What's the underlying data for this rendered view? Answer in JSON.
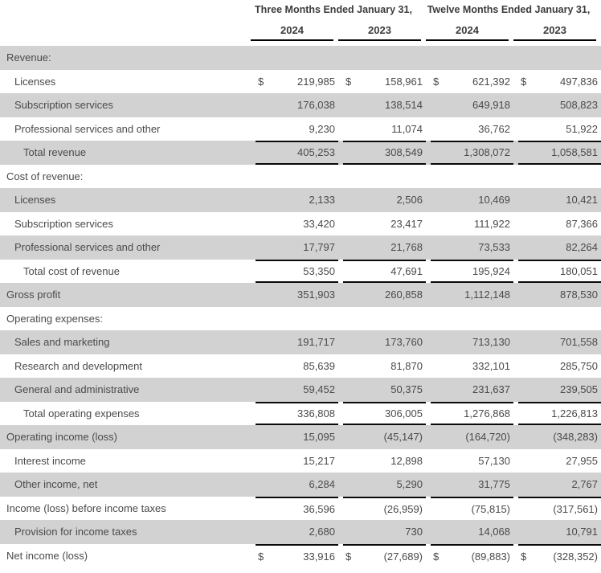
{
  "header": {
    "col_groups": [
      {
        "label": "Three Months Ended January 31,"
      },
      {
        "label": "Twelve Months Ended January 31,"
      }
    ],
    "years": [
      "2024",
      "2023",
      "2024",
      "2023"
    ]
  },
  "colors": {
    "row_shade": "#d2d2d2",
    "text": "#4a4a4a",
    "header_text": "#3c3c3c",
    "rule": "#0a0a0a"
  },
  "table": {
    "dollar_symbol": "$",
    "rows": [
      {
        "label": "Revenue:",
        "indent": 0,
        "shaded": true,
        "dollar": false,
        "border_top": false,
        "border_bottom": false,
        "values": [
          "",
          "",
          "",
          ""
        ]
      },
      {
        "label": "Licenses",
        "indent": 1,
        "shaded": false,
        "dollar": true,
        "border_top": false,
        "border_bottom": false,
        "values": [
          "219,985",
          "158,961",
          "621,392",
          "497,836"
        ]
      },
      {
        "label": "Subscription services",
        "indent": 1,
        "shaded": true,
        "dollar": false,
        "border_top": false,
        "border_bottom": false,
        "values": [
          "176,038",
          "138,514",
          "649,918",
          "508,823"
        ]
      },
      {
        "label": "Professional services and other",
        "indent": 1,
        "shaded": false,
        "dollar": false,
        "border_top": false,
        "border_bottom": false,
        "values": [
          "9,230",
          "11,074",
          "36,762",
          "51,922"
        ]
      },
      {
        "label": "Total revenue",
        "indent": 2,
        "shaded": true,
        "dollar": false,
        "border_top": true,
        "border_bottom": true,
        "values": [
          "405,253",
          "308,549",
          "1,308,072",
          "1,058,581"
        ]
      },
      {
        "label": "Cost of revenue:",
        "indent": 0,
        "shaded": false,
        "dollar": false,
        "border_top": false,
        "border_bottom": false,
        "values": [
          "",
          "",
          "",
          ""
        ]
      },
      {
        "label": "Licenses",
        "indent": 1,
        "shaded": true,
        "dollar": false,
        "border_top": false,
        "border_bottom": false,
        "values": [
          "2,133",
          "2,506",
          "10,469",
          "10,421"
        ]
      },
      {
        "label": "Subscription services",
        "indent": 1,
        "shaded": false,
        "dollar": false,
        "border_top": false,
        "border_bottom": false,
        "values": [
          "33,420",
          "23,417",
          "111,922",
          "87,366"
        ]
      },
      {
        "label": "Professional services and other",
        "indent": 1,
        "shaded": true,
        "dollar": false,
        "border_top": false,
        "border_bottom": false,
        "values": [
          "17,797",
          "21,768",
          "73,533",
          "82,264"
        ]
      },
      {
        "label": "Total cost of revenue",
        "indent": 2,
        "shaded": false,
        "dollar": false,
        "border_top": true,
        "border_bottom": true,
        "values": [
          "53,350",
          "47,691",
          "195,924",
          "180,051"
        ]
      },
      {
        "label": "Gross profit",
        "indent": 0,
        "shaded": true,
        "dollar": false,
        "border_top": false,
        "border_bottom": false,
        "values": [
          "351,903",
          "260,858",
          "1,112,148",
          "878,530"
        ]
      },
      {
        "label": "Operating expenses:",
        "indent": 0,
        "shaded": false,
        "dollar": false,
        "border_top": false,
        "border_bottom": false,
        "values": [
          "",
          "",
          "",
          ""
        ]
      },
      {
        "label": "Sales and marketing",
        "indent": 1,
        "shaded": true,
        "dollar": false,
        "border_top": false,
        "border_bottom": false,
        "values": [
          "191,717",
          "173,760",
          "713,130",
          "701,558"
        ]
      },
      {
        "label": "Research and development",
        "indent": 1,
        "shaded": false,
        "dollar": false,
        "border_top": false,
        "border_bottom": false,
        "values": [
          "85,639",
          "81,870",
          "332,101",
          "285,750"
        ]
      },
      {
        "label": "General and administrative",
        "indent": 1,
        "shaded": true,
        "dollar": false,
        "border_top": false,
        "border_bottom": false,
        "values": [
          "59,452",
          "50,375",
          "231,637",
          "239,505"
        ]
      },
      {
        "label": "Total operating expenses",
        "indent": 2,
        "shaded": false,
        "dollar": false,
        "border_top": true,
        "border_bottom": true,
        "values": [
          "336,808",
          "306,005",
          "1,276,868",
          "1,226,813"
        ]
      },
      {
        "label": "Operating income (loss)",
        "indent": 0,
        "shaded": true,
        "dollar": false,
        "border_top": false,
        "border_bottom": false,
        "values": [
          "15,095",
          "(45,147)",
          "(164,720)",
          "(348,283)"
        ]
      },
      {
        "label": "Interest income",
        "indent": 1,
        "shaded": false,
        "dollar": false,
        "border_top": false,
        "border_bottom": false,
        "values": [
          "15,217",
          "12,898",
          "57,130",
          "27,955"
        ]
      },
      {
        "label": "Other income, net",
        "indent": 1,
        "shaded": true,
        "dollar": false,
        "border_top": false,
        "border_bottom": false,
        "values": [
          "6,284",
          "5,290",
          "31,775",
          "2,767"
        ]
      },
      {
        "label": "Income (loss) before income taxes",
        "indent": 0,
        "shaded": false,
        "dollar": false,
        "border_top": true,
        "border_bottom": false,
        "values": [
          "36,596",
          "(26,959)",
          "(75,815)",
          "(317,561)"
        ]
      },
      {
        "label": "Provision for income taxes",
        "indent": 1,
        "shaded": true,
        "dollar": false,
        "border_top": false,
        "border_bottom": false,
        "values": [
          "2,680",
          "730",
          "14,068",
          "10,791"
        ]
      },
      {
        "label": "Net income (loss)",
        "indent": 0,
        "shaded": false,
        "dollar": true,
        "border_top": true,
        "border_bottom": false,
        "values": [
          "33,916",
          "(27,689)",
          "(89,883)",
          "(328,352)"
        ]
      }
    ]
  }
}
